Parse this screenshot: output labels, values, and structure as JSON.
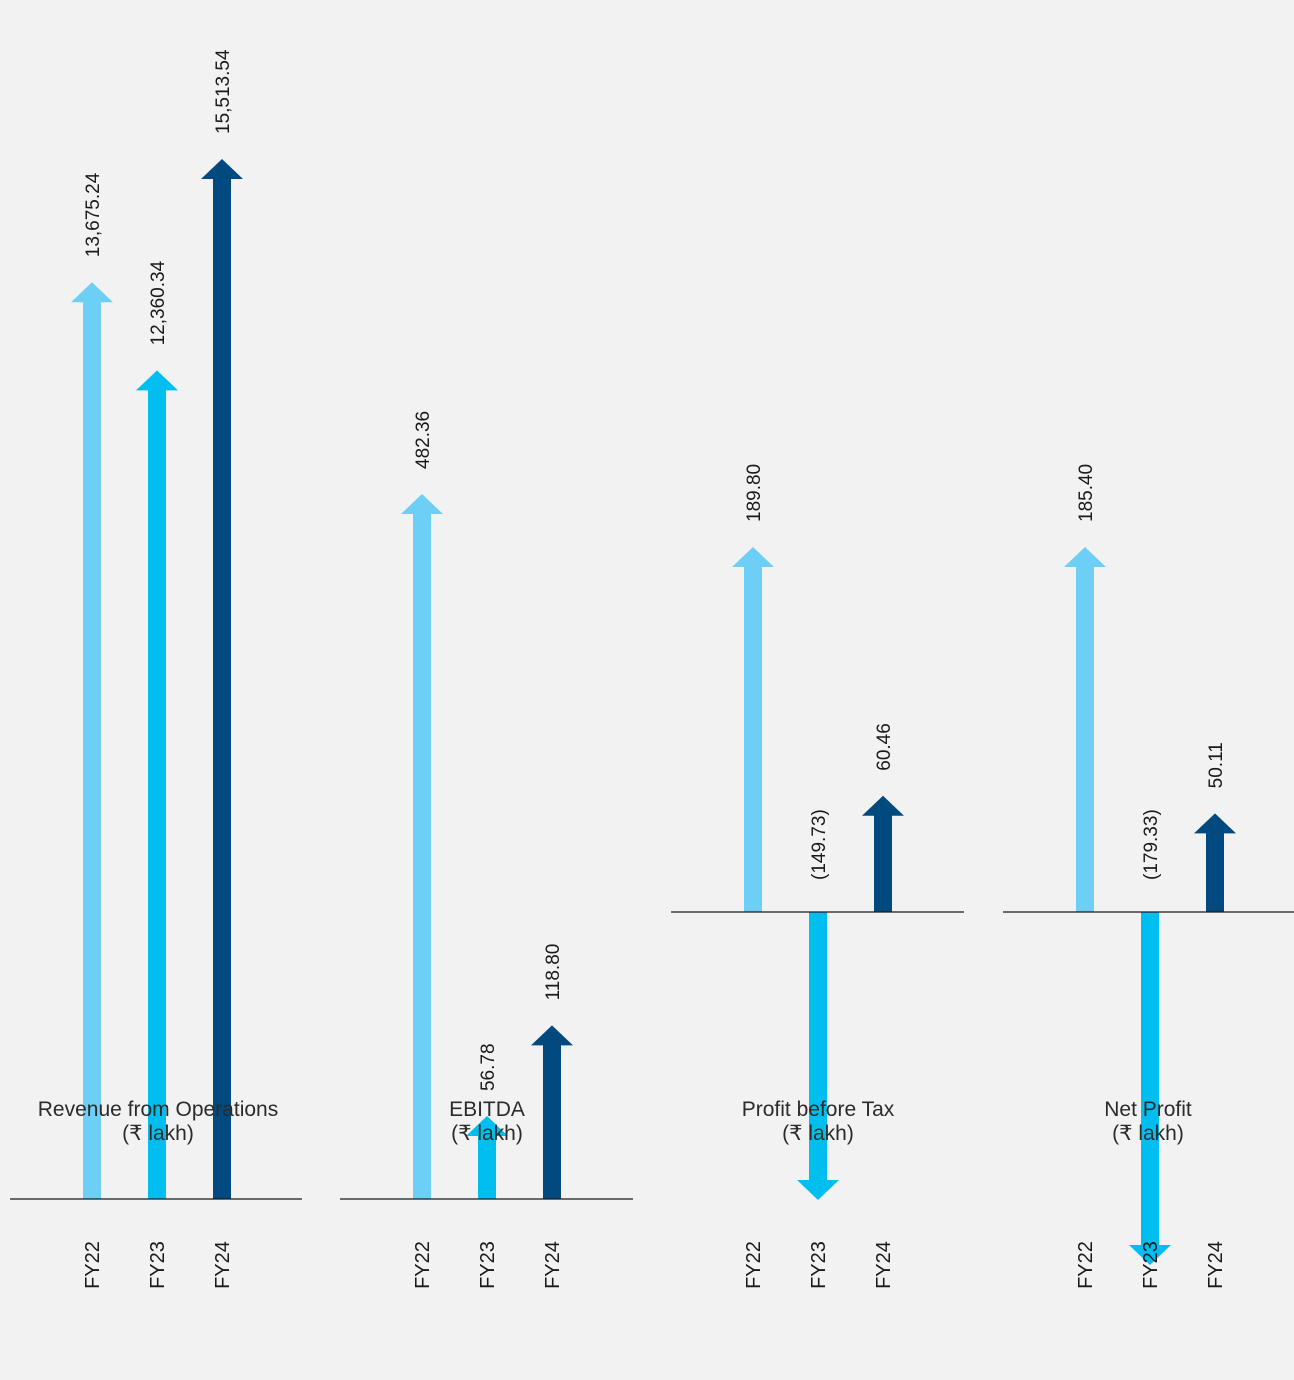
{
  "colors": {
    "FY22": "#6dcff6",
    "FY23": "#00bff0",
    "FY24": "#004a80",
    "axis": "#1a1a1a",
    "background": "#f2f2f2"
  },
  "chart_data": [
    {
      "type": "bar",
      "style": "arrow",
      "title": "Revenue from Operations",
      "unit": "(₹ lakh)",
      "categories": [
        "FY22",
        "FY23",
        "FY24"
      ],
      "values": [
        13675.24,
        12360.34,
        15513.54
      ],
      "value_labels": [
        "13,675.24",
        "12,360.34",
        "15,513.54"
      ]
    },
    {
      "type": "bar",
      "style": "arrow",
      "title": "EBITDA",
      "unit": "(₹ lakh)",
      "categories": [
        "FY22",
        "FY23",
        "FY24"
      ],
      "values": [
        482.36,
        56.78,
        118.8
      ],
      "value_labels": [
        "482.36",
        "56.78",
        "118.80"
      ]
    },
    {
      "type": "bar",
      "style": "arrow",
      "title": "Profit before Tax",
      "unit": "(₹ lakh)",
      "categories": [
        "FY22",
        "FY23",
        "FY24"
      ],
      "values": [
        189.8,
        -149.73,
        60.46
      ],
      "value_labels": [
        "189.80",
        "(149.73)",
        "60.46"
      ]
    },
    {
      "type": "bar",
      "style": "arrow",
      "title": "Net Profit",
      "unit": "(₹ lakh)",
      "categories": [
        "FY22",
        "FY23",
        "FY24"
      ],
      "values": [
        185.4,
        -179.33,
        50.11
      ],
      "value_labels": [
        "185.40",
        "(179.33)",
        "50.11"
      ]
    }
  ]
}
